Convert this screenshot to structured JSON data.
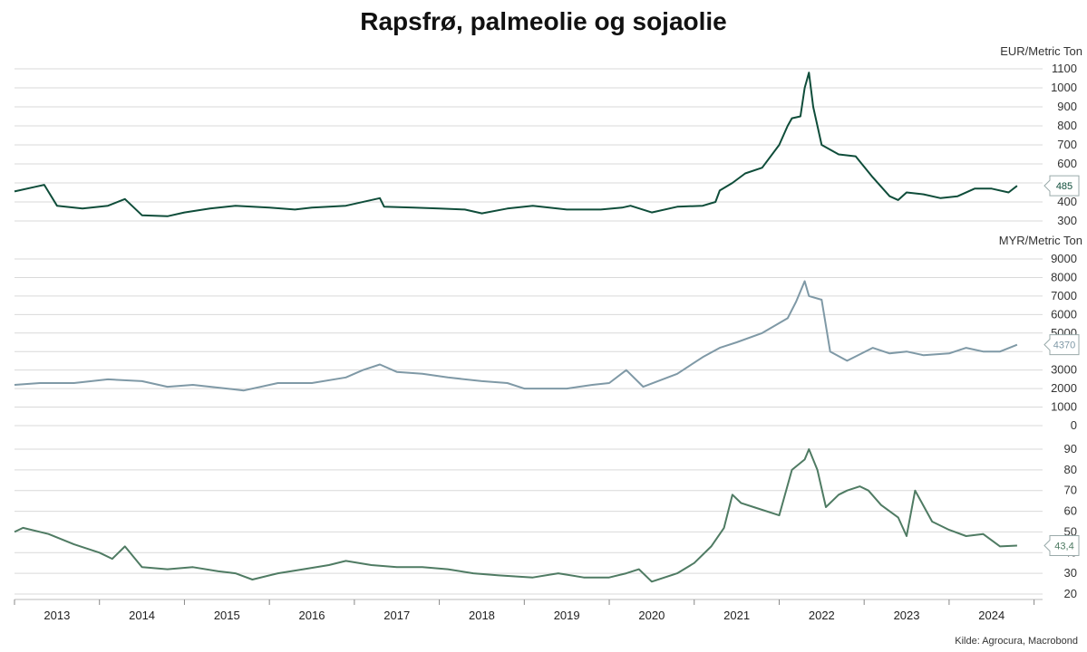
{
  "title": "Rapsfrø, palmeolie og sojaolie",
  "source": "Kilde: Agrocura, Macrobond",
  "chart_data": [
    {
      "type": "line",
      "unit_label": "EUR/Metric Ton",
      "ylim": [
        300,
        1100
      ],
      "yticks": [
        300,
        400,
        500,
        600,
        700,
        800,
        900,
        1000,
        1100
      ],
      "color": "#0f4d3a",
      "last_label": "485",
      "x": [
        2012.5,
        2012.75,
        2012.85,
        2013.0,
        2013.3,
        2013.6,
        2013.8,
        2014.0,
        2014.3,
        2014.5,
        2014.8,
        2015.0,
        2015.1,
        2015.5,
        2015.8,
        2016.0,
        2016.4,
        2016.8,
        2016.85,
        2017.2,
        2017.5,
        2017.8,
        2018.0,
        2018.3,
        2018.6,
        2019.0,
        2019.4,
        2019.65,
        2019.75,
        2020.0,
        2020.3,
        2020.6,
        2020.75,
        2020.8,
        2020.95,
        2021.1,
        2021.3,
        2021.5,
        2021.6,
        2021.65,
        2021.75,
        2021.8,
        2021.85,
        2021.9,
        2022.0,
        2022.2,
        2022.4,
        2022.6,
        2022.8,
        2022.9,
        2023.0,
        2023.2,
        2023.4,
        2023.6,
        2023.8,
        2024.0,
        2024.2,
        2024.3
      ],
      "y": [
        455,
        480,
        490,
        380,
        365,
        380,
        415,
        330,
        325,
        345,
        365,
        375,
        380,
        370,
        360,
        370,
        380,
        420,
        375,
        370,
        365,
        360,
        340,
        365,
        380,
        360,
        360,
        370,
        380,
        345,
        375,
        380,
        400,
        460,
        500,
        550,
        580,
        700,
        800,
        840,
        850,
        1000,
        1080,
        900,
        700,
        650,
        640,
        530,
        430,
        410,
        450,
        440,
        420,
        430,
        470,
        470,
        450,
        485
      ]
    },
    {
      "type": "line",
      "unit_label": "MYR/Metric Ton",
      "ylim": [
        0,
        9000
      ],
      "yticks": [
        0,
        1000,
        2000,
        3000,
        4000,
        5000,
        6000,
        7000,
        8000,
        9000
      ],
      "color": "#7f99a6",
      "last_label": "4370",
      "x": [
        2012.5,
        2012.8,
        2013.2,
        2013.6,
        2014.0,
        2014.3,
        2014.6,
        2015.0,
        2015.2,
        2015.6,
        2016.0,
        2016.4,
        2016.6,
        2016.8,
        2017.0,
        2017.3,
        2017.6,
        2018.0,
        2018.3,
        2018.5,
        2018.8,
        2019.0,
        2019.3,
        2019.5,
        2019.7,
        2019.9,
        2020.3,
        2020.6,
        2020.8,
        2021.0,
        2021.3,
        2021.6,
        2021.7,
        2021.8,
        2021.85,
        2022.0,
        2022.1,
        2022.3,
        2022.6,
        2022.8,
        2023.0,
        2023.2,
        2023.5,
        2023.7,
        2023.9,
        2024.1,
        2024.3
      ],
      "y": [
        2200,
        2300,
        2300,
        2500,
        2400,
        2100,
        2200,
        2000,
        1900,
        2300,
        2300,
        2600,
        3000,
        3300,
        2900,
        2800,
        2600,
        2400,
        2300,
        2000,
        2000,
        2000,
        2200,
        2300,
        3000,
        2100,
        2800,
        3700,
        4200,
        4500,
        5000,
        5800,
        6700,
        7800,
        7000,
        6800,
        4000,
        3500,
        4200,
        3900,
        4000,
        3800,
        3900,
        4200,
        4000,
        4000,
        4370
      ]
    },
    {
      "type": "line",
      "unit_label": "",
      "ylim": [
        20,
        90
      ],
      "yticks": [
        20,
        30,
        40,
        50,
        60,
        70,
        80,
        90
      ],
      "color": "#4f7b63",
      "last_label": "43,4",
      "x": [
        2012.5,
        2012.6,
        2012.9,
        2013.2,
        2013.5,
        2013.65,
        2013.8,
        2014.0,
        2014.3,
        2014.6,
        2014.9,
        2015.1,
        2015.3,
        2015.6,
        2015.9,
        2016.2,
        2016.4,
        2016.7,
        2017.0,
        2017.3,
        2017.6,
        2017.9,
        2018.2,
        2018.6,
        2018.9,
        2019.2,
        2019.5,
        2019.7,
        2019.85,
        2020.0,
        2020.3,
        2020.5,
        2020.7,
        2020.85,
        2020.95,
        2021.05,
        2021.2,
        2021.5,
        2021.65,
        2021.8,
        2021.85,
        2021.95,
        2022.05,
        2022.2,
        2022.3,
        2022.45,
        2022.55,
        2022.7,
        2022.9,
        2023.0,
        2023.1,
        2023.3,
        2023.5,
        2023.7,
        2023.9,
        2024.1,
        2024.3
      ],
      "y": [
        50,
        52,
        49,
        44,
        40,
        37,
        43,
        33,
        32,
        33,
        31,
        30,
        27,
        30,
        32,
        34,
        36,
        34,
        33,
        33,
        32,
        30,
        29,
        28,
        30,
        28,
        28,
        30,
        32,
        26,
        30,
        35,
        43,
        52,
        68,
        64,
        62,
        58,
        80,
        85,
        90,
        80,
        62,
        68,
        70,
        72,
        70,
        63,
        57,
        48,
        70,
        55,
        51,
        48,
        49,
        43,
        43.4
      ]
    }
  ],
  "x_axis": {
    "range": [
      2012.5,
      2024.6
    ],
    "labels": [
      "2013",
      "2014",
      "2015",
      "2016",
      "2017",
      "2018",
      "2019",
      "2020",
      "2021",
      "2022",
      "2023",
      "2024"
    ]
  }
}
